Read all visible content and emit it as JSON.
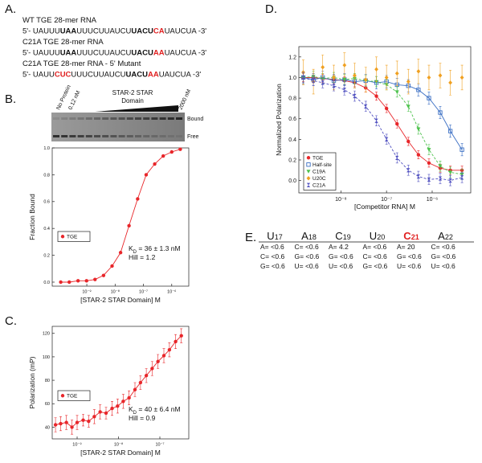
{
  "panel_labels": [
    "A.",
    "B.",
    "C.",
    "D.",
    "E."
  ],
  "sequences": [
    {
      "segments": [
        {
          "text": "WT TGE 28-mer RNA"
        }
      ]
    },
    {
      "segments": [
        {
          "text": "5'- UAUUU"
        },
        {
          "text": "UAA",
          "bold": true
        },
        {
          "text": "UUUCUUAUCU"
        },
        {
          "text": "UACU",
          "bold": true
        },
        {
          "text": "CA",
          "bold": true,
          "color": "#e02020"
        },
        {
          "text": "UAUCUA -3'"
        }
      ]
    },
    {
      "segments": [
        {
          "text": "C21A TGE 28-mer RNA"
        }
      ]
    },
    {
      "segments": [
        {
          "text": "5'- UAUUU"
        },
        {
          "text": "UAA",
          "bold": true
        },
        {
          "text": "UUUCUUAUCU"
        },
        {
          "text": "UACU",
          "bold": true
        },
        {
          "text": "AA",
          "bold": true,
          "color": "#e02020"
        },
        {
          "text": "UAUCUA -3'"
        }
      ]
    },
    {
      "segments": [
        {
          "text": "C21A TGE 28-mer RNA - 5' Mutant"
        }
      ]
    },
    {
      "segments": [
        {
          "text": "5'- UAUU"
        },
        {
          "text": "CUC",
          "bold": true,
          "color": "#e02020"
        },
        {
          "text": "UUUCUUAUCU"
        },
        {
          "text": "UACU",
          "bold": true
        },
        {
          "text": "AA",
          "bold": true,
          "color": "#e02020"
        },
        {
          "text": "UAUCUA -3'"
        }
      ]
    }
  ],
  "gel": {
    "lane_labels": [
      "No Protein",
      "0.12 nM",
      "2000 nM"
    ],
    "title": [
      "STAR-2 STAR",
      "Domain"
    ],
    "band_labels": [
      "Bound",
      "Free"
    ]
  },
  "chart_data": [
    {
      "type": "scatter",
      "xscale": "log",
      "xlim": [
        6e-11,
        4e-06
      ],
      "ylim": [
        -0.03,
        1.0
      ],
      "xticks": [
        {
          "value": 1e-09,
          "label": "10⁻⁹"
        },
        {
          "value": 1e-08,
          "label": "10⁻⁸"
        },
        {
          "value": 1e-07,
          "label": "10⁻⁷"
        },
        {
          "value": 1e-06,
          "label": "10⁻⁶"
        }
      ],
      "yticks": [
        {
          "value": 0,
          "label": "0.0"
        },
        {
          "value": 0.2,
          "label": "0.2"
        },
        {
          "value": 0.4,
          "label": "0.4"
        },
        {
          "value": 0.6,
          "label": "0.6"
        },
        {
          "value": 0.8,
          "label": "0.8"
        },
        {
          "value": 1,
          "label": "1.0"
        }
      ],
      "y_label": "Fraction Bound",
      "x_label": "[STAR-2 STAR Domain] M",
      "x": [
        1.2e-10,
        2.4e-10,
        4.9e-10,
        9.8e-10,
        1.95e-09,
        3.9e-09,
        7.8e-09,
        1.56e-08,
        3.1e-08,
        6.25e-08,
        1.25e-07,
        2.5e-07,
        5e-07,
        1e-06,
        2e-06
      ],
      "series": [
        {
          "name": "TGE",
          "color": "#e8262a",
          "marker": "circle",
          "line": true,
          "values": [
            0.0,
            0.0,
            0.01,
            0.01,
            0.02,
            0.05,
            0.12,
            0.22,
            0.42,
            0.62,
            0.8,
            0.88,
            0.94,
            0.97,
            0.99
          ]
        }
      ],
      "legend": "lower left",
      "annotations": [
        {
          "parts": [
            {
              "text": "K"
            },
            {
              "text": "D",
              "sub": true
            },
            {
              "text": " = 36 ± 1.3 nM"
            }
          ]
        },
        {
          "parts": [
            {
              "text": "Hill = 1.2"
            }
          ]
        }
      ]
    },
    {
      "type": "scatter",
      "xscale": "log",
      "xlim": [
        2.5e-10,
        5e-07
      ],
      "ylim": [
        30,
        126
      ],
      "xticks": [
        {
          "value": 1e-09,
          "label": "10⁻⁹"
        },
        {
          "value": 1e-08,
          "label": "10⁻⁸"
        },
        {
          "value": 1e-07,
          "label": "10⁻⁷"
        }
      ],
      "yticks": [
        40,
        60,
        80,
        100,
        120
      ],
      "y_label": "Polarization (mP)",
      "x_label": "[STAR-2 STAR Domain] M",
      "x": [
        3e-10,
        4e-10,
        5.5e-10,
        7.5e-10,
        1e-09,
        1.4e-09,
        1.9e-09,
        2.6e-09,
        3.6e-09,
        5e-09,
        7e-09,
        9.5e-09,
        1.3e-08,
        1.8e-08,
        2.5e-08,
        3.4e-08,
        4.7e-08,
        6.5e-08,
        9e-08,
        1.25e-07,
        1.7e-07,
        2.4e-07,
        3.3e-07
      ],
      "series": [
        {
          "name": "TGE",
          "color": "#e8262a",
          "marker": "circle",
          "line": true,
          "values": [
            42,
            43,
            44,
            40,
            44,
            46,
            45,
            49,
            53,
            52,
            56,
            58,
            62,
            65,
            72,
            78,
            84,
            90,
            96,
            101,
            106,
            113,
            118
          ],
          "errors": [
            6,
            6,
            6,
            6,
            6,
            5,
            5,
            6,
            6,
            5,
            6,
            6,
            6,
            6,
            6,
            6,
            6,
            6,
            6,
            6,
            6,
            6,
            6
          ]
        }
      ],
      "legend": "middle left",
      "annotations": [
        {
          "parts": [
            {
              "text": "K"
            },
            {
              "text": "D",
              "sub": true
            },
            {
              "text": " = 40 ± 6.4 nM"
            }
          ]
        },
        {
          "parts": [
            {
              "text": "Hill = 0.9"
            }
          ]
        }
      ]
    },
    {
      "type": "scatter",
      "xscale": "log",
      "xlim": [
        1.2e-09,
        7e-06
      ],
      "ylim": [
        -0.12,
        1.3
      ],
      "xticks": [
        {
          "value": 1e-08,
          "label": "10⁻⁸"
        },
        {
          "value": 1e-07,
          "label": "10⁻⁷"
        },
        {
          "value": 1e-06,
          "label": "10⁻⁶"
        }
      ],
      "yticks": [
        {
          "value": 0,
          "label": "0.0"
        },
        {
          "value": 0.2,
          "label": "0.2"
        },
        {
          "value": 0.4,
          "label": "0.4"
        },
        {
          "value": 0.6,
          "label": "0.6"
        },
        {
          "value": 0.8,
          "label": "0.8"
        },
        {
          "value": 1,
          "label": "1.0"
        },
        {
          "value": 1.2,
          "label": "1.2"
        }
      ],
      "y_label": "Normalized Polarization",
      "x_label": "[Competitor RNA] M",
      "x": [
        1.5e-09,
        2.5e-09,
        4e-09,
        7e-09,
        1.2e-08,
        2e-08,
        3.5e-08,
        6e-08,
        1e-07,
        1.7e-07,
        3e-07,
        5e-07,
        8.5e-07,
        1.5e-06,
        2.5e-06,
        4.5e-06
      ],
      "series": [
        {
          "name": "TGE",
          "color": "#e8262a",
          "marker": "circle",
          "line": true,
          "values": [
            1.0,
            1.0,
            0.99,
            0.98,
            0.97,
            0.95,
            0.9,
            0.82,
            0.7,
            0.55,
            0.38,
            0.25,
            0.17,
            0.12,
            0.1,
            0.1
          ],
          "errors": [
            0.04,
            0.04,
            0.04,
            0.04,
            0.04,
            0.04,
            0.04,
            0.04,
            0.04,
            0.04,
            0.04,
            0.04,
            0.04,
            0.04,
            0.04,
            0.04
          ]
        },
        {
          "name": "Half-site",
          "color": "#3b6fc4",
          "marker": "square-open",
          "line": true,
          "values": [
            1.0,
            0.98,
            1.0,
            0.97,
            0.98,
            0.96,
            0.97,
            0.95,
            0.96,
            0.93,
            0.92,
            0.88,
            0.8,
            0.66,
            0.48,
            0.3
          ],
          "errors": [
            0.06,
            0.06,
            0.06,
            0.06,
            0.06,
            0.06,
            0.06,
            0.06,
            0.06,
            0.06,
            0.06,
            0.06,
            0.06,
            0.06,
            0.06,
            0.06
          ]
        },
        {
          "name": "C19A",
          "color": "#4cc24c",
          "marker": "triangle-down",
          "line": true,
          "dash": true,
          "values": [
            1.0,
            1.01,
            0.99,
            1.0,
            0.98,
            0.99,
            0.97,
            0.96,
            0.93,
            0.86,
            0.72,
            0.5,
            0.3,
            0.14,
            0.08,
            0.06
          ],
          "errors": [
            0.05,
            0.05,
            0.05,
            0.05,
            0.05,
            0.05,
            0.05,
            0.05,
            0.05,
            0.05,
            0.05,
            0.05,
            0.05,
            0.05,
            0.05,
            0.05
          ]
        },
        {
          "name": "U20C",
          "color": "#f0a020",
          "marker": "diamond",
          "line": false,
          "values": [
            1.05,
            0.96,
            1.1,
            1.0,
            1.12,
            1.02,
            0.98,
            1.08,
            1.0,
            1.04,
            0.96,
            1.06,
            1.0,
            1.02,
            0.95,
            1.0
          ],
          "errors": [
            0.12,
            0.12,
            0.12,
            0.12,
            0.12,
            0.12,
            0.12,
            0.12,
            0.12,
            0.12,
            0.12,
            0.12,
            0.12,
            0.12,
            0.12,
            0.12
          ]
        },
        {
          "name": "C21A",
          "color": "#5050c0",
          "marker": "hourglass",
          "line": true,
          "dash": true,
          "values": [
            1.0,
            0.97,
            0.95,
            0.92,
            0.88,
            0.82,
            0.72,
            0.58,
            0.4,
            0.22,
            0.1,
            0.04,
            0.01,
            0.02,
            0.0,
            0.03
          ],
          "errors": [
            0.05,
            0.05,
            0.05,
            0.05,
            0.05,
            0.05,
            0.05,
            0.05,
            0.05,
            0.05,
            0.05,
            0.05,
            0.05,
            0.05,
            0.05,
            0.05
          ]
        }
      ],
      "legend": "lower left"
    }
  ],
  "table": {
    "columns": [
      {
        "base": "U",
        "pos": "17",
        "rows": [
          "A= <0.6",
          "C= <0.6",
          "G= <0.6"
        ]
      },
      {
        "base": "A",
        "pos": "18",
        "rows": [
          "C= <0.6",
          "G= <0.6",
          "U= <0.6"
        ]
      },
      {
        "base": "C",
        "pos": "19",
        "rows": [
          "A= 4.2",
          "G= <0.6",
          "U= <0.6"
        ]
      },
      {
        "base": "U",
        "pos": "20",
        "rows": [
          "A= <0.6",
          "C= <0.6",
          "G= <0.6"
        ]
      },
      {
        "base": "C",
        "pos": "21",
        "rows": [
          "A= 20",
          "G= <0.6",
          "U= <0.6"
        ],
        "color": "#e02020",
        "bold": true
      },
      {
        "base": "A",
        "pos": "22",
        "rows": [
          "C= <0.6",
          "G= <0.6",
          "U= <0.6"
        ]
      }
    ]
  }
}
